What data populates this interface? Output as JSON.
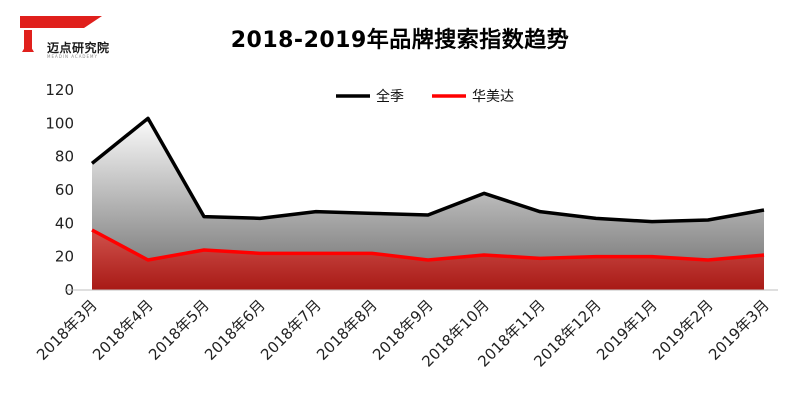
{
  "logo": {
    "name": "迈点研究院",
    "sub": "MEADIN ACADEMY"
  },
  "chart_data": {
    "type": "area",
    "title": "2018-2019年品牌搜索指数趋势",
    "xlabel": "",
    "ylabel": "",
    "categories": [
      "2018年3月",
      "2018年4月",
      "2018年5月",
      "2018年6月",
      "2018年7月",
      "2018年8月",
      "2018年9月",
      "2018年10月",
      "2018年11月",
      "2018年12月",
      "2019年1月",
      "2019年2月",
      "2019年3月"
    ],
    "ylim": [
      0,
      120
    ],
    "yticks": [
      0,
      20,
      40,
      60,
      80,
      100,
      120
    ],
    "grid": false,
    "legend_position": "top-center",
    "series": [
      {
        "name": "全季",
        "color": "#000000",
        "values": [
          76,
          103,
          44,
          43,
          47,
          46,
          45,
          58,
          47,
          43,
          41,
          42,
          48
        ]
      },
      {
        "name": "华美达",
        "color": "#ff0000",
        "values": [
          36,
          18,
          24,
          22,
          22,
          22,
          18,
          21,
          19,
          20,
          20,
          18,
          21
        ]
      }
    ]
  }
}
